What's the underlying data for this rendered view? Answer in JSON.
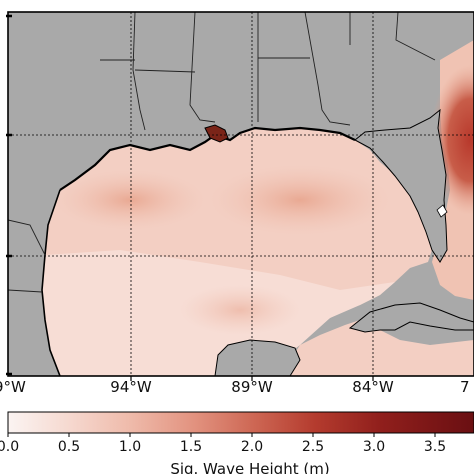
{
  "map": {
    "lon_labels": [
      "9°W",
      "94°W",
      "89°W",
      "84°W",
      "7"
    ],
    "colorbar": {
      "tick_labels": [
        "0.0",
        "0.5",
        "1.0",
        "1.5",
        "2.0",
        "2.5",
        "3.0",
        "3.5"
      ],
      "title": "Sig. Wave Height (m)",
      "range": [
        0.0,
        3.9
      ],
      "colors": [
        "#fbf4f2",
        "#f6d9d0",
        "#efbbab",
        "#e2927f",
        "#cd6653",
        "#b43b2e",
        "#901f1c",
        "#6a0f12"
      ]
    },
    "land_color": "#a9a9a9",
    "grid": true
  }
}
